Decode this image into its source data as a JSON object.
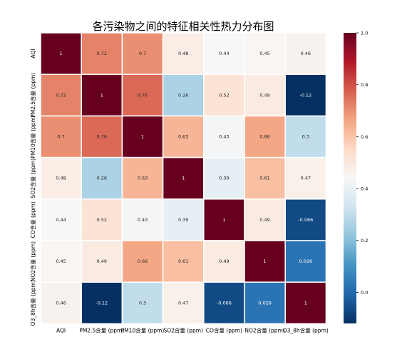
{
  "chart_data": {
    "type": "heatmap",
    "title": "各污染物之间的特征相关性热力分布图",
    "row_labels": [
      "AQI",
      "PM2.5含量 (ppm)",
      "PM10含量 (ppm)",
      "SO2含量 (ppm)",
      "CO含量 (ppm)",
      "NO2含量 (ppm)",
      "O3_8h含量 (ppm)"
    ],
    "col_labels": [
      "AQI",
      "PM2.5含量 (ppm)",
      "PM10含量 (ppm)",
      "SO2含量 (ppm)",
      "CO含量 (ppm)",
      "NO2含量 (ppm)",
      "O3_8h含量 (ppm)"
    ],
    "values": [
      [
        1,
        0.72,
        0.7,
        0.48,
        0.44,
        0.45,
        0.46
      ],
      [
        0.72,
        1,
        0.76,
        0.26,
        0.52,
        0.49,
        -0.12
      ],
      [
        0.7,
        0.76,
        1,
        0.63,
        0.43,
        0.66,
        0.3
      ],
      [
        0.48,
        0.26,
        0.63,
        1,
        0.39,
        0.61,
        0.47
      ],
      [
        0.44,
        0.52,
        0.43,
        0.39,
        1,
        0.49,
        -0.066
      ],
      [
        0.45,
        0.49,
        0.66,
        0.61,
        0.49,
        1,
        0.026
      ],
      [
        0.46,
        -0.12,
        0.3,
        0.47,
        -0.066,
        0.026,
        1
      ]
    ],
    "cell_labels": [
      [
        "1",
        "0.72",
        "0.7",
        "0.48",
        "0.44",
        "0.45",
        "0.46"
      ],
      [
        "0.72",
        "1",
        "0.76",
        "0.26",
        "0.52",
        "0.49",
        "-0.12"
      ],
      [
        "0.7",
        "0.76",
        "1",
        "0.63",
        "0.43",
        "0.66",
        "0.3"
      ],
      [
        "0.48",
        "0.26",
        "0.63",
        "1",
        "0.39",
        "0.61",
        "0.47"
      ],
      [
        "0.44",
        "0.52",
        "0.43",
        "0.39",
        "1",
        "0.49",
        "-0.066"
      ],
      [
        "0.45",
        "0.49",
        "0.66",
        "0.61",
        "0.49",
        "1",
        "0.026"
      ],
      [
        "0.46",
        "-0.12",
        "0.3",
        "0.47",
        "-0.066",
        "0.026",
        "1"
      ]
    ],
    "colormap": "RdBu_r",
    "colorbar": {
      "min": -0.12,
      "max": 1.0,
      "ticks": [
        0.0,
        0.2,
        0.4,
        0.6,
        0.8,
        1.0
      ],
      "tick_labels": [
        "0.0",
        "0.2",
        "0.4",
        "0.6",
        "0.8",
        "1.0"
      ]
    },
    "grid_line_color": "#ffffff"
  }
}
